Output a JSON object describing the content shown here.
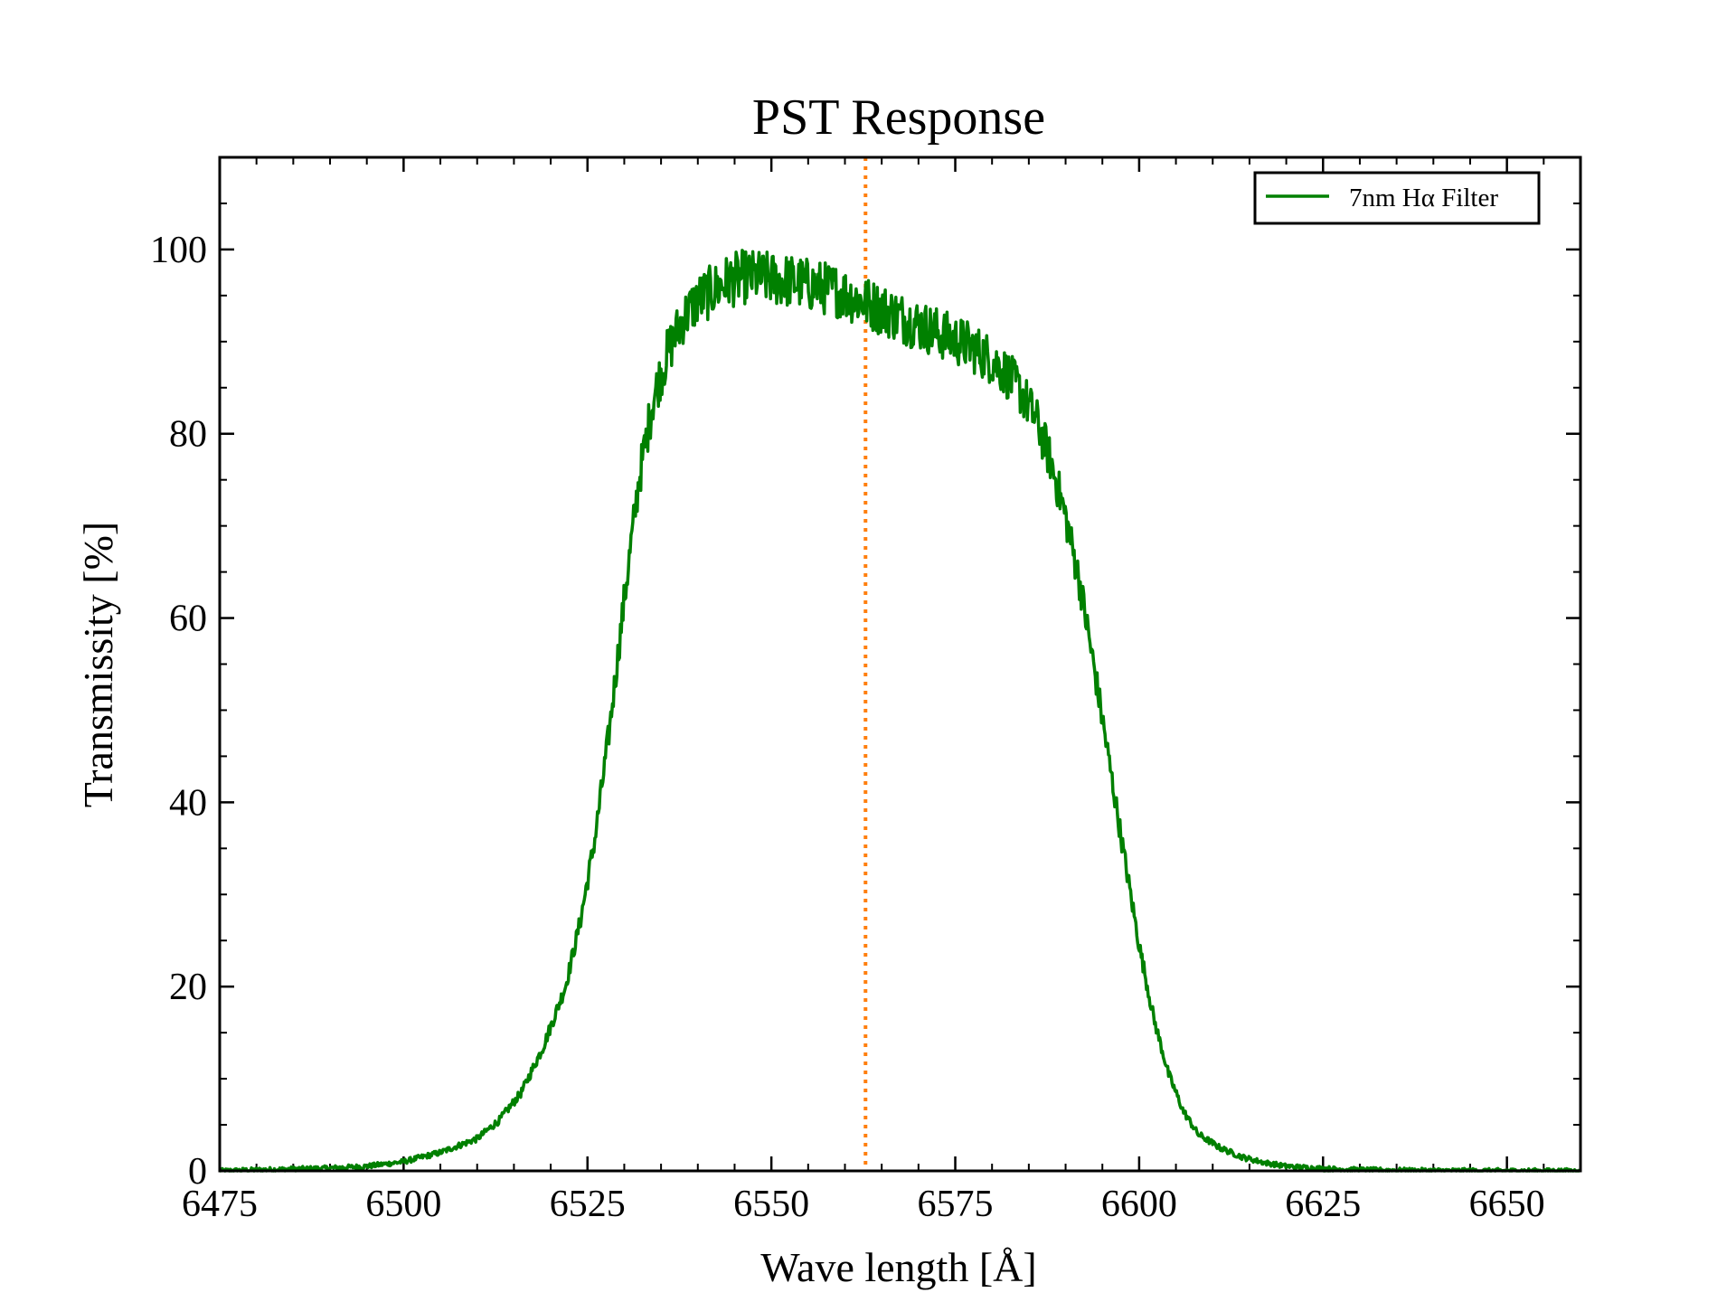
{
  "chart_data": {
    "type": "line",
    "title": "PST Response",
    "xlabel": "Wave length [Å]",
    "ylabel": "Transmissity [%]",
    "xlim": [
      6475,
      6660
    ],
    "ylim": [
      0,
      110
    ],
    "grid": false,
    "legend_position": "top-right",
    "xticks": [
      6475,
      6500,
      6525,
      6550,
      6575,
      6600,
      6625,
      6650
    ],
    "yticks": [
      0,
      20,
      40,
      60,
      80,
      100
    ],
    "series": [
      {
        "name": "7nm Hα Filter",
        "color": "#008000",
        "x": [
          6475,
          6480,
          6485,
          6490,
          6495,
          6500,
          6505,
          6510,
          6513,
          6516,
          6519,
          6522,
          6524,
          6526,
          6528,
          6530,
          6532,
          6534,
          6536,
          6538,
          6540,
          6542,
          6544,
          6546,
          6548,
          6550,
          6553,
          6556,
          6559,
          6562,
          6565,
          6568,
          6571,
          6574,
          6577,
          6580,
          6582,
          6584,
          6586,
          6588,
          6590,
          6592,
          6594,
          6596,
          6598,
          6600,
          6602,
          6604,
          6606,
          6608,
          6611,
          6614,
          6617,
          6620,
          6625,
          6630,
          6635,
          6640,
          6645,
          6650,
          6655,
          6660
        ],
        "y": [
          0.0,
          0.1,
          0.2,
          0.3,
          0.5,
          1.0,
          2.0,
          3.5,
          5.5,
          8.5,
          13.5,
          20.0,
          27.0,
          36.0,
          48.0,
          62.0,
          75.0,
          84.0,
          89.0,
          92.5,
          94.5,
          95.5,
          96.5,
          97.0,
          97.0,
          96.8,
          96.5,
          96.0,
          95.5,
          94.5,
          93.5,
          92.5,
          91.5,
          90.5,
          89.5,
          88.0,
          86.5,
          84.5,
          81.5,
          77.0,
          71.0,
          63.5,
          54.0,
          44.0,
          34.0,
          24.5,
          16.5,
          10.5,
          6.5,
          4.0,
          2.5,
          1.5,
          0.9,
          0.5,
          0.25,
          0.12,
          0.06,
          0.03,
          0.02,
          0.01,
          0.0,
          0.0
        ]
      }
    ],
    "reference_line": {
      "axis": "x",
      "value": 6562.8,
      "color": "#ff7f0e",
      "style": "dotted"
    }
  }
}
